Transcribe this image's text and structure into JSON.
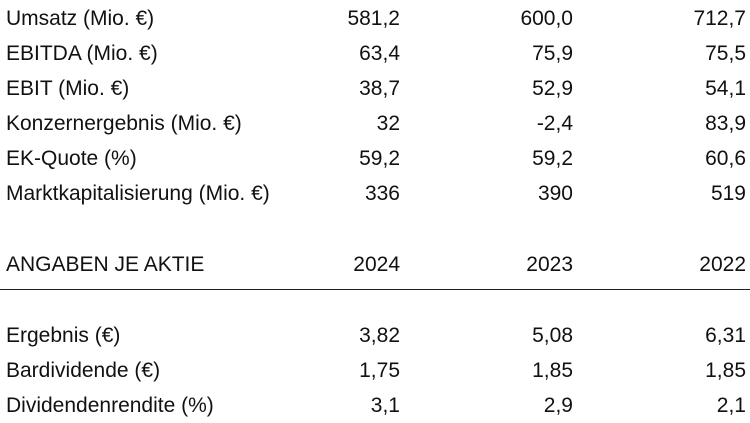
{
  "kennzahlen": [
    {
      "label": "Umsatz (Mio. €)",
      "values": [
        "581,2",
        "600,0",
        "712,7"
      ]
    },
    {
      "label": "EBITDA (Mio. €)",
      "values": [
        "63,4",
        "75,9",
        "75,5"
      ]
    },
    {
      "label": "EBIT (Mio. €)",
      "values": [
        "38,7",
        "52,9",
        "54,1"
      ]
    },
    {
      "label": "Konzernergebnis (Mio. €)",
      "values": [
        "32",
        "-2,4",
        "83,9"
      ]
    },
    {
      "label": "EK-Quote (%)",
      "values": [
        "59,2",
        "59,2",
        "60,6"
      ]
    },
    {
      "label": "Marktkapitalisierung (Mio. €)",
      "values": [
        "336",
        "390",
        "519"
      ]
    }
  ],
  "aktie_header": {
    "label": "ANGABEN JE AKTIE",
    "years": [
      "2024",
      "2023",
      "2022"
    ]
  },
  "aktie": [
    {
      "label": "Ergebnis (€)",
      "values": [
        "3,82",
        "5,08",
        "6,31"
      ]
    },
    {
      "label": "Bardividende (€)",
      "values": [
        "1,75",
        "1,85",
        "1,85"
      ]
    },
    {
      "label": "Dividendenrendite (%)",
      "values": [
        "3,1",
        "2,9",
        "2,1"
      ]
    }
  ]
}
